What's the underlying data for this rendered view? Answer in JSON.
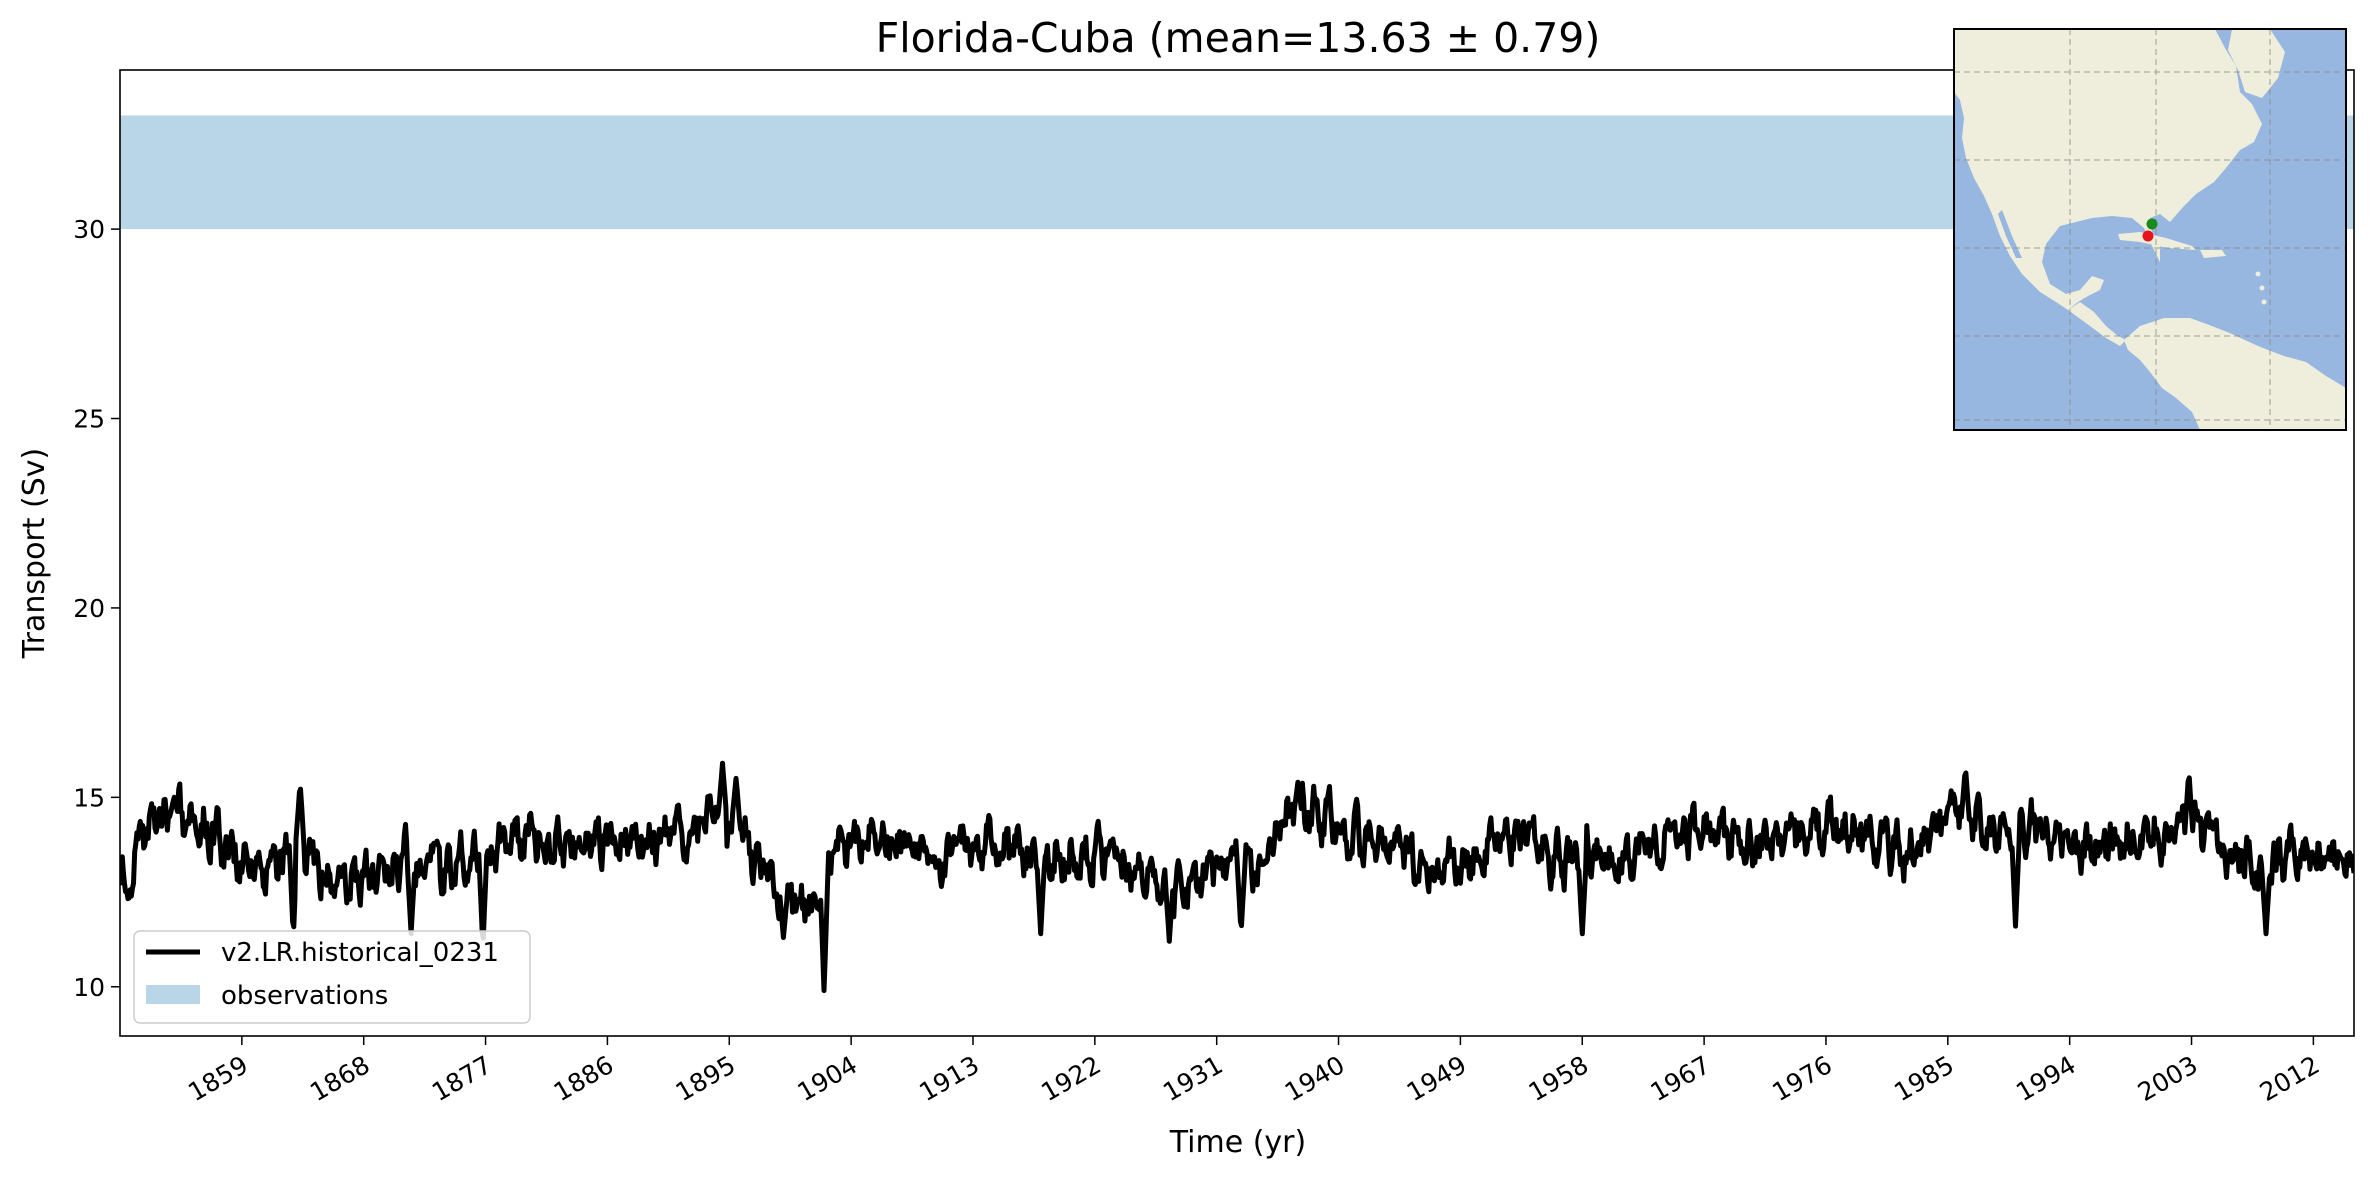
{
  "chart_data": {
    "type": "line",
    "title": "Florida-Cuba (mean=13.63 ± 0.79)",
    "xlabel": "Time (yr)",
    "ylabel": "Transport (Sv)",
    "xlim": [
      1850,
      2015
    ],
    "ylim": [
      8.7,
      34.2
    ],
    "xticks": [
      "1859",
      "1868",
      "1877",
      "1886",
      "1895",
      "1904",
      "1913",
      "1922",
      "1931",
      "1940",
      "1949",
      "1958",
      "1967",
      "1976",
      "1985",
      "1994",
      "2003",
      "2012"
    ],
    "yticks": [
      "10",
      "15",
      "20",
      "25",
      "30"
    ],
    "grid": false,
    "legend_placement": "lower-left",
    "series": [
      {
        "name": "v2.LR.historical_0231",
        "color": "#000000",
        "mean": 13.63,
        "std": 0.79,
        "x_start": 1850,
        "x_end": 2015,
        "samples_per_year": 12,
        "anchors": [
          {
            "x": 1850.0,
            "y": 12.5
          },
          {
            "x": 1851.0,
            "y": 13.4
          },
          {
            "x": 1853.0,
            "y": 14.5
          },
          {
            "x": 1855.5,
            "y": 14.6
          },
          {
            "x": 1858.0,
            "y": 13.6
          },
          {
            "x": 1861.0,
            "y": 13.2
          },
          {
            "x": 1863.0,
            "y": 13.9
          },
          {
            "x": 1865.0,
            "y": 13.1
          },
          {
            "x": 1868.0,
            "y": 12.7
          },
          {
            "x": 1871.0,
            "y": 13.4
          },
          {
            "x": 1874.0,
            "y": 13.0
          },
          {
            "x": 1877.0,
            "y": 13.6
          },
          {
            "x": 1880.0,
            "y": 14.0
          },
          {
            "x": 1884.0,
            "y": 13.7
          },
          {
            "x": 1888.0,
            "y": 13.9
          },
          {
            "x": 1891.0,
            "y": 13.8
          },
          {
            "x": 1894.0,
            "y": 14.6
          },
          {
            "x": 1895.5,
            "y": 14.4
          },
          {
            "x": 1897.5,
            "y": 12.9
          },
          {
            "x": 1899.5,
            "y": 12.4
          },
          {
            "x": 1901.0,
            "y": 12.2
          },
          {
            "x": 1903.0,
            "y": 13.7
          },
          {
            "x": 1906.0,
            "y": 14.1
          },
          {
            "x": 1910.0,
            "y": 13.4
          },
          {
            "x": 1914.0,
            "y": 13.9
          },
          {
            "x": 1918.0,
            "y": 13.4
          },
          {
            "x": 1922.0,
            "y": 13.5
          },
          {
            "x": 1926.0,
            "y": 13.0
          },
          {
            "x": 1929.5,
            "y": 12.6
          },
          {
            "x": 1931.5,
            "y": 13.5
          },
          {
            "x": 1934.0,
            "y": 13.2
          },
          {
            "x": 1936.5,
            "y": 14.6
          },
          {
            "x": 1938.5,
            "y": 14.5
          },
          {
            "x": 1941.5,
            "y": 14.0
          },
          {
            "x": 1945.0,
            "y": 13.4
          },
          {
            "x": 1949.0,
            "y": 13.1
          },
          {
            "x": 1953.0,
            "y": 14.1
          },
          {
            "x": 1956.0,
            "y": 13.4
          },
          {
            "x": 1960.0,
            "y": 13.4
          },
          {
            "x": 1963.0,
            "y": 13.7
          },
          {
            "x": 1967.0,
            "y": 14.2
          },
          {
            "x": 1970.0,
            "y": 13.7
          },
          {
            "x": 1974.0,
            "y": 14.1
          },
          {
            "x": 1978.0,
            "y": 14.2
          },
          {
            "x": 1982.0,
            "y": 13.5
          },
          {
            "x": 1985.5,
            "y": 14.6
          },
          {
            "x": 1988.0,
            "y": 14.0
          },
          {
            "x": 1992.0,
            "y": 14.2
          },
          {
            "x": 1995.0,
            "y": 13.6
          },
          {
            "x": 1999.0,
            "y": 14.0
          },
          {
            "x": 2002.0,
            "y": 14.1
          },
          {
            "x": 2005.0,
            "y": 13.9
          },
          {
            "x": 2008.0,
            "y": 13.0
          },
          {
            "x": 2011.0,
            "y": 13.6
          },
          {
            "x": 2015.0,
            "y": 13.4
          }
        ],
        "extremes": [
          {
            "x": 1854.0,
            "y": 15.0
          },
          {
            "x": 1862.8,
            "y": 11.3
          },
          {
            "x": 1863.3,
            "y": 15.4
          },
          {
            "x": 1871.5,
            "y": 11.4
          },
          {
            "x": 1876.8,
            "y": 11.0
          },
          {
            "x": 1894.5,
            "y": 15.9
          },
          {
            "x": 1895.5,
            "y": 15.5
          },
          {
            "x": 1899.0,
            "y": 11.3
          },
          {
            "x": 1902.0,
            "y": 9.9
          },
          {
            "x": 1918.0,
            "y": 11.4
          },
          {
            "x": 1927.5,
            "y": 11.2
          },
          {
            "x": 1932.8,
            "y": 11.4
          },
          {
            "x": 1937.0,
            "y": 15.4
          },
          {
            "x": 1958.0,
            "y": 11.4
          },
          {
            "x": 1986.3,
            "y": 15.8
          },
          {
            "x": 1990.0,
            "y": 11.6
          },
          {
            "x": 2002.8,
            "y": 15.7
          },
          {
            "x": 2008.5,
            "y": 11.4
          }
        ]
      }
    ],
    "observations": {
      "name": "observations",
      "range": [
        30.0,
        33.0
      ],
      "color": "#b8d6e8"
    },
    "inset_map": {
      "land_color": "#efeedc",
      "ocean_color": "#97b6e0",
      "markers": [
        {
          "color": "#1a8a1a"
        },
        {
          "color": "#e8141b"
        }
      ]
    }
  }
}
